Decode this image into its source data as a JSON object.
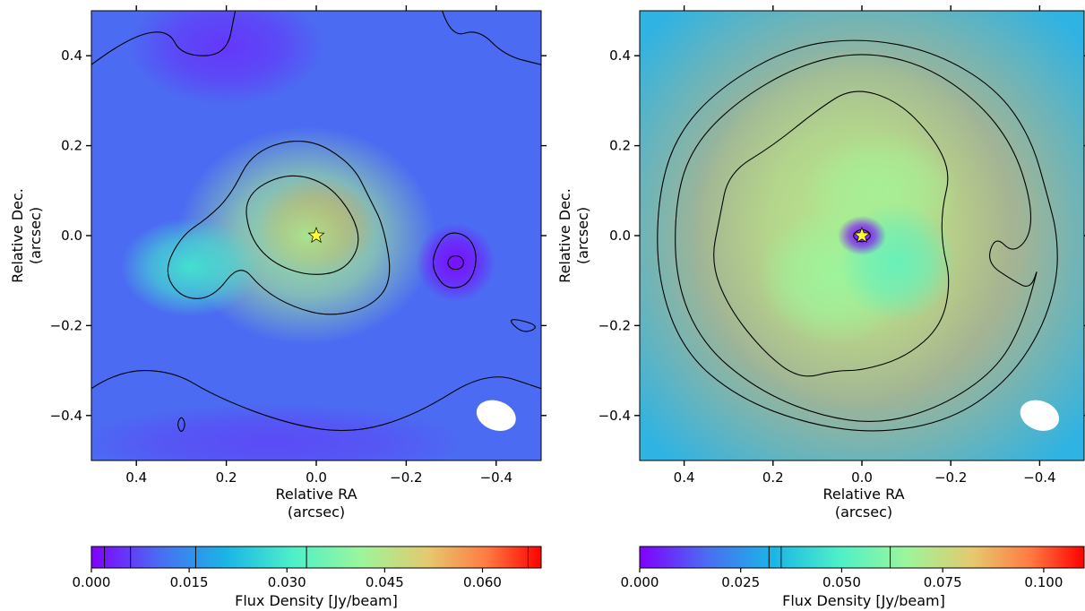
{
  "chart_data": [
    {
      "type": "heatmap",
      "title": "",
      "xlabel": [
        "Relative RA",
        "(arcsec)"
      ],
      "ylabel": [
        "Relative Dec.",
        "(arcsec)"
      ],
      "xlim": [
        0.5,
        -0.5
      ],
      "ylim": [
        -0.5,
        0.5
      ],
      "xticks": [
        0.4,
        0.2,
        0.0,
        -0.2,
        -0.4
      ],
      "xtick_labels": [
        "0.4",
        "0.2",
        "0.0",
        "−0.2",
        "−0.4"
      ],
      "yticks": [
        0.4,
        0.2,
        0.0,
        -0.2,
        -0.4
      ],
      "ytick_labels": [
        "0.4",
        "0.2",
        "0.0",
        "−0.2",
        "−0.4"
      ],
      "colormap": "rainbow",
      "background_color": "#4b6cf2",
      "star": {
        "ra": 0.0,
        "dec": 0.0,
        "color": "#ffff33"
      },
      "emission": [
        {
          "ra": 0.0,
          "dec": 0.02,
          "value": 0.064,
          "sigma_ra": 0.06,
          "sigma_dec": 0.05
        },
        {
          "ra": 0.02,
          "dec": 0.0,
          "value": 0.03,
          "sigma_ra": 0.13,
          "sigma_dec": 0.11
        },
        {
          "ra": 0.28,
          "dec": -0.07,
          "value": 0.016,
          "sigma_ra": 0.07,
          "sigma_dec": 0.05
        },
        {
          "ra": -0.31,
          "dec": -0.06,
          "value": -0.012,
          "sigma_ra": 0.04,
          "sigma_dec": 0.04
        },
        {
          "ra": 0.2,
          "dec": 0.42,
          "value": -0.008,
          "sigma_ra": 0.1,
          "sigma_dec": 0.06
        },
        {
          "ra": 0.1,
          "dec": -0.46,
          "value": -0.006,
          "sigma_ra": 0.2,
          "sigma_dec": 0.04
        }
      ],
      "contours": [
        {
          "level": 0.033,
          "points": [
            [
              0.16,
              0.09
            ],
            [
              0.07,
              0.14
            ],
            [
              -0.02,
              0.12
            ],
            [
              -0.08,
              0.05
            ],
            [
              -0.1,
              -0.02
            ],
            [
              -0.06,
              -0.08
            ],
            [
              0.02,
              -0.09
            ],
            [
              0.1,
              -0.06
            ],
            [
              0.15,
              0.0
            ]
          ]
        },
        {
          "level": 0.016,
          "points": [
            [
              0.19,
              0.09
            ],
            [
              0.14,
              0.19
            ],
            [
              0.02,
              0.22
            ],
            [
              -0.08,
              0.16
            ],
            [
              -0.12,
              0.08
            ],
            [
              -0.15,
              0.02
            ],
            [
              -0.17,
              -0.1
            ],
            [
              -0.12,
              -0.16
            ],
            [
              -0.03,
              -0.18
            ],
            [
              0.05,
              -0.16
            ],
            [
              0.12,
              -0.12
            ],
            [
              0.17,
              -0.06
            ],
            [
              0.23,
              -0.14
            ],
            [
              0.3,
              -0.14
            ],
            [
              0.34,
              -0.08
            ],
            [
              0.3,
              0.0
            ],
            [
              0.24,
              0.04
            ]
          ]
        },
        {
          "level": -0.006,
          "points": [
            [
              -0.26,
              -0.04
            ],
            [
              -0.29,
              0.01
            ],
            [
              -0.34,
              0.0
            ],
            [
              -0.36,
              -0.05
            ],
            [
              -0.34,
              -0.11
            ],
            [
              -0.29,
              -0.12
            ],
            [
              -0.26,
              -0.08
            ]
          ]
        },
        {
          "level": -0.012,
          "points": [
            [
              -0.29,
              -0.06
            ],
            [
              -0.3,
              -0.045
            ],
            [
              -0.32,
              -0.045
            ],
            [
              -0.33,
              -0.06
            ],
            [
              -0.32,
              -0.075
            ],
            [
              -0.3,
              -0.075
            ]
          ]
        },
        {
          "level": 0.006,
          "points": [
            [
              0.5,
              0.38
            ],
            [
              0.42,
              0.44
            ],
            [
              0.33,
              0.46
            ],
            [
              0.3,
              0.4
            ],
            [
              0.2,
              0.4
            ],
            [
              0.18,
              0.5
            ]
          ]
        },
        {
          "level": 0.006,
          "points": [
            [
              -0.28,
              0.5
            ],
            [
              -0.3,
              0.44
            ],
            [
              -0.36,
              0.46
            ],
            [
              -0.42,
              0.4
            ],
            [
              -0.5,
              0.38
            ]
          ]
        },
        {
          "level": 0.006,
          "points": [
            [
              0.5,
              -0.34
            ],
            [
              0.44,
              -0.3
            ],
            [
              0.32,
              -0.3
            ],
            [
              0.22,
              -0.36
            ],
            [
              0.06,
              -0.42
            ],
            [
              -0.08,
              -0.44
            ],
            [
              -0.22,
              -0.4
            ],
            [
              -0.38,
              -0.3
            ],
            [
              -0.5,
              -0.34
            ]
          ]
        },
        {
          "level": 0.002,
          "points": [
            [
              0.3,
              -0.4
            ],
            [
              0.29,
              -0.42
            ],
            [
              0.3,
              -0.44
            ],
            [
              0.31,
              -0.42
            ]
          ]
        },
        {
          "level": 0.002,
          "points": [
            [
              -0.42,
              -0.18
            ],
            [
              -0.46,
              -0.22
            ],
            [
              -0.5,
              -0.2
            ]
          ]
        }
      ],
      "beam": {
        "ra": -0.4,
        "dec": -0.4,
        "width": 0.09,
        "height": 0.065,
        "angle_deg": 20,
        "color": "#ffffff"
      },
      "colorbar": {
        "label": "Flux Density [Jy/beam]",
        "range": [
          0.0,
          0.069
        ],
        "ticks": [
          0.0,
          0.015,
          0.03,
          0.045,
          0.06
        ],
        "tick_labels": [
          "0.000",
          "0.015",
          "0.030",
          "0.045",
          "0.060"
        ],
        "contour_lines": [
          0.002,
          0.006,
          0.016,
          0.033,
          0.067
        ]
      }
    },
    {
      "type": "heatmap",
      "title": "",
      "xlabel": [
        "Relative RA",
        "(arcsec)"
      ],
      "ylabel": [
        "Relative Dec.",
        "(arcsec)"
      ],
      "xlim": [
        0.5,
        -0.5
      ],
      "ylim": [
        -0.5,
        0.5
      ],
      "xticks": [
        0.4,
        0.2,
        0.0,
        -0.2,
        -0.4
      ],
      "xtick_labels": [
        "0.4",
        "0.2",
        "0.0",
        "−0.2",
        "−0.4"
      ],
      "yticks": [
        0.4,
        0.2,
        0.0,
        -0.2,
        -0.4
      ],
      "ytick_labels": [
        "0.4",
        "0.2",
        "0.0",
        "−0.2",
        "−0.4"
      ],
      "colormap": "rainbow",
      "background_color": "#2fb3e3",
      "star": {
        "ra": 0.0,
        "dec": 0.0,
        "color": "#ffff33"
      },
      "emission": [
        {
          "ra": 0.0,
          "dec": 0.0,
          "value": 0.046,
          "sigma_ra": 0.3,
          "sigma_dec": 0.3
        },
        {
          "ra": 0.02,
          "dec": 0.02,
          "value": 0.03,
          "sigma_ra": 0.16,
          "sigma_dec": 0.18
        },
        {
          "ra": -0.04,
          "dec": 0.1,
          "value": 0.028,
          "sigma_ra": 0.08,
          "sigma_dec": 0.06
        },
        {
          "ra": 0.06,
          "dec": -0.09,
          "value": 0.026,
          "sigma_ra": 0.08,
          "sigma_dec": 0.07
        },
        {
          "ra": -0.08,
          "dec": -0.06,
          "value": 0.014,
          "sigma_ra": 0.06,
          "sigma_dec": 0.06
        },
        {
          "ra": 0.0,
          "dec": 0.0,
          "value": -0.05,
          "sigma_ra": 0.025,
          "sigma_dec": 0.02
        }
      ],
      "contours": [
        {
          "level": 0.062,
          "points": [
            [
              0.32,
              0.04
            ],
            [
              0.3,
              0.14
            ],
            [
              0.2,
              0.2
            ],
            [
              0.1,
              0.28
            ],
            [
              0.02,
              0.33
            ],
            [
              -0.08,
              0.3
            ],
            [
              -0.16,
              0.22
            ],
            [
              -0.2,
              0.14
            ],
            [
              -0.18,
              0.06
            ],
            [
              -0.18,
              -0.02
            ],
            [
              -0.2,
              -0.1
            ],
            [
              -0.18,
              -0.2
            ],
            [
              -0.1,
              -0.27
            ],
            [
              0.0,
              -0.3
            ],
            [
              0.06,
              -0.3
            ],
            [
              0.14,
              -0.32
            ],
            [
              0.22,
              -0.26
            ],
            [
              0.3,
              -0.16
            ],
            [
              0.34,
              -0.06
            ]
          ]
        },
        {
          "level": 0.035,
          "points": [
            [
              0.42,
              0.08
            ],
            [
              0.38,
              0.2
            ],
            [
              0.28,
              0.3
            ],
            [
              0.14,
              0.38
            ],
            [
              0.0,
              0.41
            ],
            [
              -0.14,
              0.38
            ],
            [
              -0.26,
              0.3
            ],
            [
              -0.34,
              0.2
            ],
            [
              -0.38,
              0.08
            ],
            [
              -0.38,
              0.0
            ],
            [
              -0.34,
              -0.04
            ],
            [
              -0.3,
              0.0
            ],
            [
              -0.28,
              -0.06
            ],
            [
              -0.34,
              -0.1
            ],
            [
              -0.38,
              -0.12
            ],
            [
              -0.4,
              -0.06
            ],
            [
              -0.36,
              -0.2
            ],
            [
              -0.3,
              -0.3
            ],
            [
              -0.18,
              -0.38
            ],
            [
              -0.04,
              -0.42
            ],
            [
              0.1,
              -0.4
            ],
            [
              0.24,
              -0.34
            ],
            [
              0.36,
              -0.24
            ],
            [
              0.42,
              -0.1
            ]
          ]
        },
        {
          "level": 0.032,
          "points": [
            [
              0.46,
              0.08
            ],
            [
              0.42,
              0.22
            ],
            [
              0.32,
              0.33
            ],
            [
              0.16,
              0.42
            ],
            [
              0.0,
              0.44
            ],
            [
              -0.16,
              0.41
            ],
            [
              -0.3,
              0.33
            ],
            [
              -0.38,
              0.22
            ],
            [
              -0.42,
              0.08
            ],
            [
              -0.44,
              0.0
            ],
            [
              -0.44,
              -0.1
            ],
            [
              -0.4,
              -0.22
            ],
            [
              -0.32,
              -0.33
            ],
            [
              -0.2,
              -0.41
            ],
            [
              -0.04,
              -0.44
            ],
            [
              0.12,
              -0.42
            ],
            [
              0.28,
              -0.36
            ],
            [
              0.4,
              -0.26
            ],
            [
              0.46,
              -0.1
            ]
          ]
        },
        {
          "level": 0.035,
          "points": [
            [
              0.025,
              0.0
            ],
            [
              0.0,
              0.018
            ],
            [
              -0.025,
              0.0
            ],
            [
              0.0,
              -0.018
            ]
          ]
        }
      ],
      "beam": {
        "ra": -0.4,
        "dec": -0.4,
        "width": 0.09,
        "height": 0.065,
        "angle_deg": 20,
        "color": "#ffffff"
      },
      "colorbar": {
        "label": "Flux Density [Jy/beam]",
        "range": [
          0.0,
          0.11
        ],
        "ticks": [
          0.0,
          0.025,
          0.05,
          0.075,
          0.1
        ],
        "tick_labels": [
          "0.000",
          "0.025",
          "0.050",
          "0.075",
          "0.100"
        ],
        "contour_lines": [
          0.032,
          0.035,
          0.062
        ]
      }
    }
  ]
}
